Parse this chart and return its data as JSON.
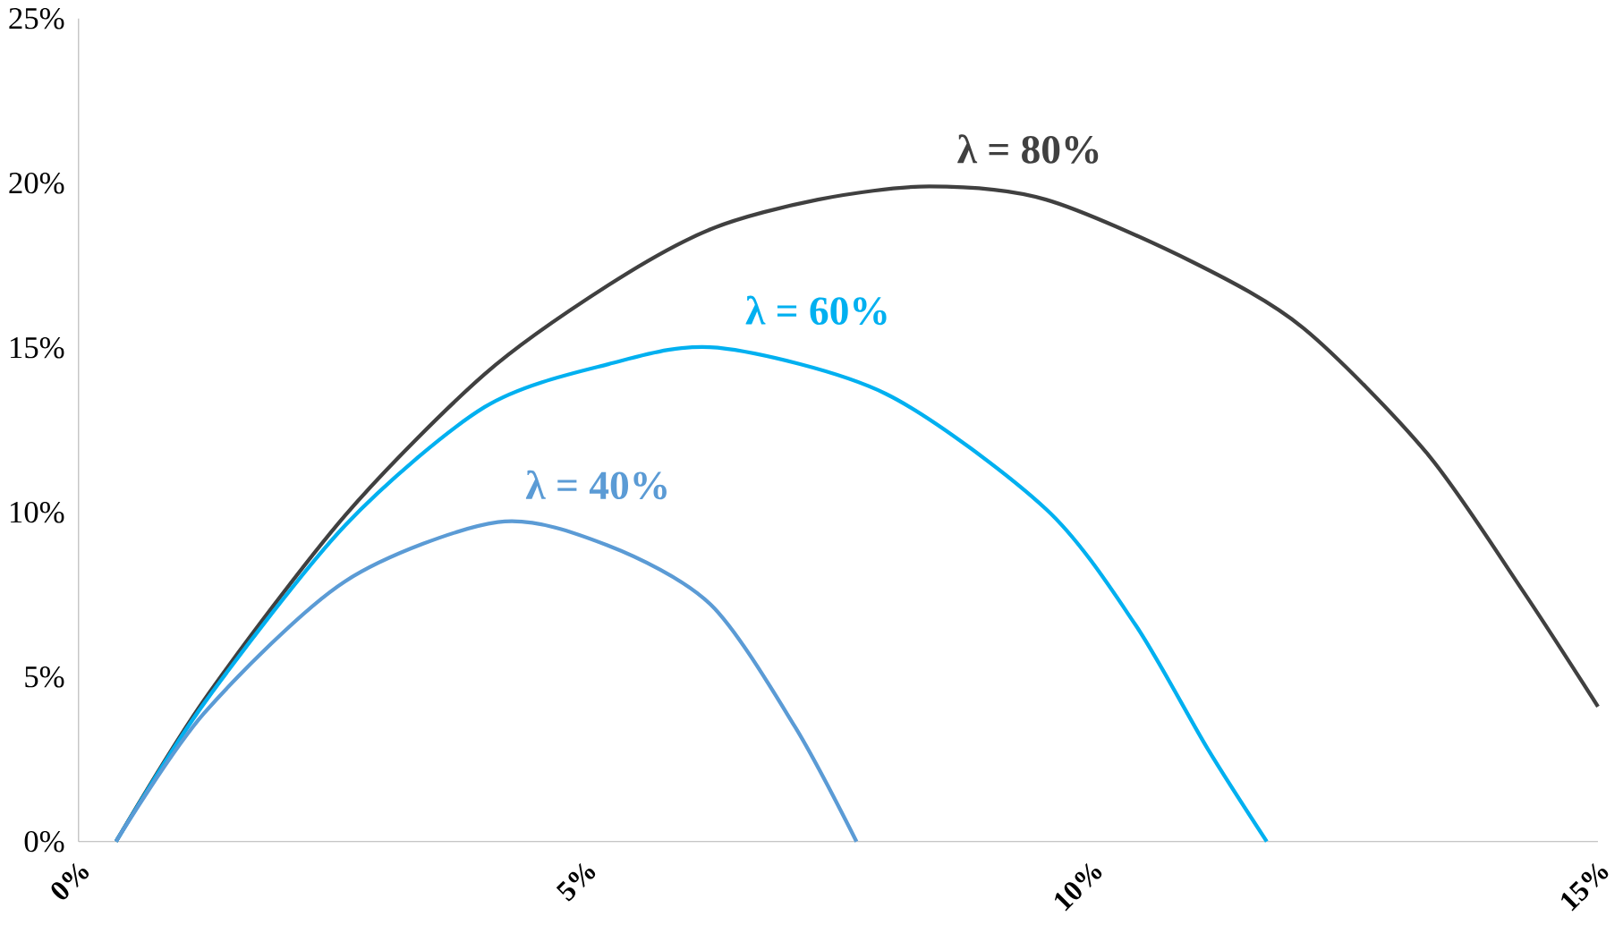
{
  "chart_data": {
    "type": "line",
    "xlim": [
      0,
      15
    ],
    "ylim": [
      0,
      25
    ],
    "xticks": [
      {
        "value": 0,
        "label": "0%"
      },
      {
        "value": 5,
        "label": "5%"
      },
      {
        "value": 10,
        "label": "10%"
      },
      {
        "value": 15,
        "label": "15%"
      }
    ],
    "yticks": [
      {
        "value": 0,
        "label": "0%"
      },
      {
        "value": 5,
        "label": "5%"
      },
      {
        "value": 10,
        "label": "10%"
      },
      {
        "value": 15,
        "label": "15%"
      },
      {
        "value": 20,
        "label": "20%"
      },
      {
        "value": 25,
        "label": "25%"
      }
    ],
    "grid": false,
    "legend": false,
    "marker": "none",
    "line_style": "solid",
    "series": [
      {
        "name": "λ = 80%",
        "color": "#404040",
        "x": [
          0.37,
          1.24,
          2.63,
          4.01,
          5.23,
          6.24,
          7.3,
          8.4,
          9.55,
          11.0,
          12.09,
          13.31,
          14.24,
          15
        ],
        "values": [
          0,
          4.3,
          9.9,
          14.2,
          16.9,
          18.6,
          19.5,
          19.9,
          19.5,
          17.6,
          15.6,
          11.8,
          7.7,
          4.1
        ]
      },
      {
        "name": "λ = 60%",
        "color": "#00b0f0",
        "x": [
          0.37,
          1.24,
          2.63,
          4.01,
          5.23,
          6.31,
          7.97,
          9.55,
          10.43,
          11.15,
          11.73
        ],
        "values": [
          0,
          4.2,
          9.6,
          13.2,
          14.5,
          15.0,
          13.6,
          10.1,
          6.6,
          2.8,
          0
        ]
      },
      {
        "name": "λ = 40%",
        "color": "#5b9bd5",
        "x": [
          0.37,
          1.24,
          2.63,
          4.14,
          5.22,
          6.24,
          7.07,
          7.68
        ],
        "values": [
          0,
          3.9,
          7.9,
          9.7,
          9.0,
          7.2,
          3.5,
          0
        ]
      }
    ]
  }
}
